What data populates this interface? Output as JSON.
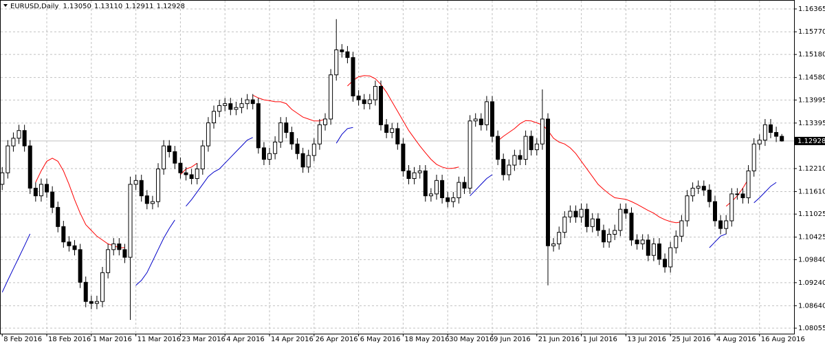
{
  "chart_data": {
    "type": "candlestick",
    "symbol": "EURUSD,Daily",
    "header_values": [
      "1.13050",
      "1.13110",
      "1.12911",
      "1.12928"
    ],
    "last_price": {
      "value": 1.12928,
      "label": "1.12928"
    },
    "ylim": [
      1.07912,
      1.16598
    ],
    "yticks": [
      1.16365,
      {
        "value": 1.1577,
        "label": "1.15770"
      },
      {
        "value": 1.1518,
        "label": "1.15180"
      },
      {
        "value": 1.1458,
        "label": "1.14580"
      },
      1.13995,
      1.13395,
      {
        "value": 1.1221,
        "label": "1.12210"
      },
      {
        "value": 1.1161,
        "label": "1.11610"
      },
      1.11025,
      1.10425,
      {
        "value": 1.0984,
        "label": "1.09840"
      },
      {
        "value": 1.0924,
        "label": "1.09240"
      },
      {
        "value": 1.0864,
        "label": "1.08640"
      },
      1.08055
    ],
    "xlim": [
      -0.4,
      142.2
    ],
    "xticks": [
      {
        "value": 0,
        "label": "8 Feb 2016"
      },
      {
        "value": 8,
        "label": "18 Feb 2016"
      },
      {
        "value": 16,
        "label": "1 Mar 2016"
      },
      {
        "value": 24,
        "label": "11 Mar 2016"
      },
      {
        "value": 32,
        "label": "23 Mar 2016"
      },
      {
        "value": 40,
        "label": "4 Apr 2016"
      },
      {
        "value": 48,
        "label": "14 Apr 2016"
      },
      {
        "value": 56,
        "label": "26 Apr 2016"
      },
      {
        "value": 64,
        "label": "6 May 2016"
      },
      {
        "value": 72,
        "label": "18 May 2016"
      },
      {
        "value": 80,
        "label": "30 May 2016"
      },
      {
        "value": 88,
        "label": "9 Jun 2016"
      },
      {
        "value": 96,
        "label": "21 Jun 2016"
      },
      {
        "value": 104,
        "label": "1 Jul 2016"
      },
      {
        "value": 112,
        "label": "13 Jul 2016"
      },
      {
        "value": 120,
        "label": "25 Jul 2016"
      },
      {
        "value": 128,
        "label": "4 Aug 2016"
      },
      {
        "value": 136,
        "label": "16 Aug 2016"
      }
    ],
    "grid": true,
    "up_color": "#ffffff",
    "down_color": "#000000",
    "candles": [
      [
        1.118,
        1.1225,
        1.1165,
        1.121
      ],
      [
        1.121,
        1.1295,
        1.1195,
        1.128
      ],
      [
        1.128,
        1.1315,
        1.1265,
        1.13
      ],
      [
        1.13,
        1.1335,
        1.1285,
        1.132
      ],
      [
        1.132,
        1.1335,
        1.1265,
        1.128
      ],
      [
        1.128,
        1.1295,
        1.1155,
        1.117
      ],
      [
        1.117,
        1.1185,
        1.1135,
        1.115
      ],
      [
        1.115,
        1.1195,
        1.1135,
        1.118
      ],
      [
        1.118,
        1.1195,
        1.1145,
        1.116
      ],
      [
        1.116,
        1.1175,
        1.1105,
        1.112
      ],
      [
        1.112,
        1.1135,
        1.1055,
        1.107
      ],
      [
        1.107,
        1.1085,
        1.1015,
        1.103
      ],
      [
        1.103,
        1.1045,
        1.1005,
        1.102
      ],
      [
        1.102,
        1.1035,
        1.0995,
        1.101
      ],
      [
        1.101,
        1.1025,
        1.091,
        1.0925
      ],
      [
        1.0925,
        1.094,
        1.086,
        1.0875
      ],
      [
        1.0875,
        1.089,
        1.0855,
        1.087
      ],
      [
        1.087,
        1.089,
        1.0855,
        1.0875
      ],
      [
        1.0875,
        1.0965,
        1.086,
        1.095
      ],
      [
        1.095,
        1.1025,
        1.0935,
        1.101
      ],
      [
        1.101,
        1.104,
        1.0995,
        1.1025
      ],
      [
        1.1025,
        1.104,
        1.0995,
        1.101
      ],
      [
        1.101,
        1.1025,
        1.0975,
        1.099
      ],
      [
        1.099,
        1.12,
        1.0827,
        1.118
      ],
      [
        1.118,
        1.1205,
        1.1165,
        1.119
      ],
      [
        1.119,
        1.1205,
        1.1135,
        1.115
      ],
      [
        1.115,
        1.1165,
        1.1115,
        1.113
      ],
      [
        1.113,
        1.115,
        1.1115,
        1.1135
      ],
      [
        1.1135,
        1.1235,
        1.112,
        1.122
      ],
      [
        1.122,
        1.1295,
        1.1205,
        1.128
      ],
      [
        1.128,
        1.1295,
        1.125,
        1.1265
      ],
      [
        1.1265,
        1.128,
        1.122,
        1.1235
      ],
      [
        1.1235,
        1.125,
        1.1195,
        1.121
      ],
      [
        1.121,
        1.1225,
        1.119,
        1.1205
      ],
      [
        1.1205,
        1.122,
        1.118,
        1.1195
      ],
      [
        1.1195,
        1.1235,
        1.118,
        1.122
      ],
      [
        1.122,
        1.1295,
        1.1205,
        1.128
      ],
      [
        1.128,
        1.1355,
        1.1265,
        1.134
      ],
      [
        1.134,
        1.1385,
        1.1325,
        1.137
      ],
      [
        1.137,
        1.14,
        1.1355,
        1.1385
      ],
      [
        1.1385,
        1.1405,
        1.137,
        1.139
      ],
      [
        1.139,
        1.1405,
        1.136,
        1.1375
      ],
      [
        1.1375,
        1.1395,
        1.136,
        1.138
      ],
      [
        1.138,
        1.1405,
        1.1365,
        1.139
      ],
      [
        1.139,
        1.1415,
        1.1375,
        1.14
      ],
      [
        1.14,
        1.1415,
        1.1375,
        1.139
      ],
      [
        1.139,
        1.1405,
        1.126,
        1.1275
      ],
      [
        1.1275,
        1.129,
        1.123,
        1.1245
      ],
      [
        1.1245,
        1.1275,
        1.123,
        1.126
      ],
      [
        1.126,
        1.1305,
        1.1245,
        1.129
      ],
      [
        1.129,
        1.1355,
        1.1275,
        1.134
      ],
      [
        1.134,
        1.1355,
        1.13,
        1.1315
      ],
      [
        1.1315,
        1.133,
        1.127,
        1.1285
      ],
      [
        1.1285,
        1.13,
        1.1245,
        1.126
      ],
      [
        1.126,
        1.1275,
        1.121,
        1.1225
      ],
      [
        1.1225,
        1.127,
        1.121,
        1.1255
      ],
      [
        1.1255,
        1.13,
        1.124,
        1.1285
      ],
      [
        1.1285,
        1.135,
        1.127,
        1.1335
      ],
      [
        1.1335,
        1.1365,
        1.132,
        1.135
      ],
      [
        1.135,
        1.148,
        1.1335,
        1.1465
      ],
      [
        1.1465,
        1.161,
        1.145,
        1.153
      ],
      [
        1.153,
        1.1545,
        1.151,
        1.1525
      ],
      [
        1.1525,
        1.154,
        1.1495,
        1.151
      ],
      [
        1.151,
        1.1525,
        1.1395,
        1.141
      ],
      [
        1.141,
        1.1425,
        1.1385,
        1.14
      ],
      [
        1.14,
        1.1415,
        1.1375,
        1.139
      ],
      [
        1.139,
        1.1415,
        1.1375,
        1.14
      ],
      [
        1.14,
        1.145,
        1.1385,
        1.1435
      ],
      [
        1.1435,
        1.145,
        1.132,
        1.1335
      ],
      [
        1.1335,
        1.135,
        1.13,
        1.1315
      ],
      [
        1.1315,
        1.134,
        1.13,
        1.1325
      ],
      [
        1.1325,
        1.134,
        1.127,
        1.1285
      ],
      [
        1.1285,
        1.13,
        1.12,
        1.1215
      ],
      [
        1.1215,
        1.123,
        1.118,
        1.1195
      ],
      [
        1.1195,
        1.1225,
        1.118,
        1.121
      ],
      [
        1.121,
        1.123,
        1.1195,
        1.1215
      ],
      [
        1.1215,
        1.123,
        1.1135,
        1.115
      ],
      [
        1.115,
        1.117,
        1.1135,
        1.1155
      ],
      [
        1.1155,
        1.1205,
        1.114,
        1.119
      ],
      [
        1.119,
        1.1205,
        1.113,
        1.1145
      ],
      [
        1.1145,
        1.116,
        1.112,
        1.1135
      ],
      [
        1.1135,
        1.116,
        1.112,
        1.1145
      ],
      [
        1.1145,
        1.12,
        1.113,
        1.1185
      ],
      [
        1.1185,
        1.12,
        1.1155,
        1.117
      ],
      [
        1.117,
        1.136,
        1.1155,
        1.1345
      ],
      [
        1.1345,
        1.1365,
        1.133,
        1.135
      ],
      [
        1.135,
        1.1365,
        1.132,
        1.1335
      ],
      [
        1.1335,
        1.141,
        1.132,
        1.1395
      ],
      [
        1.1395,
        1.141,
        1.129,
        1.1305
      ],
      [
        1.1305,
        1.132,
        1.123,
        1.1245
      ],
      [
        1.1245,
        1.126,
        1.119,
        1.1205
      ],
      [
        1.1205,
        1.1245,
        1.119,
        1.123
      ],
      [
        1.123,
        1.127,
        1.1215,
        1.1255
      ],
      [
        1.1255,
        1.127,
        1.123,
        1.1245
      ],
      [
        1.1245,
        1.132,
        1.123,
        1.1305
      ],
      [
        1.1305,
        1.132,
        1.1255,
        1.127
      ],
      [
        1.127,
        1.13,
        1.1255,
        1.1285
      ],
      [
        1.1285,
        1.1427,
        1.127,
        1.135
      ],
      [
        1.135,
        1.1365,
        1.0917,
        1.102
      ],
      [
        1.102,
        1.104,
        1.1005,
        1.1025
      ],
      [
        1.1025,
        1.107,
        1.101,
        1.1055
      ],
      [
        1.1055,
        1.111,
        1.104,
        1.1095
      ],
      [
        1.1095,
        1.1125,
        1.108,
        1.111
      ],
      [
        1.111,
        1.1125,
        1.108,
        1.1095
      ],
      [
        1.1095,
        1.113,
        1.108,
        1.1115
      ],
      [
        1.1115,
        1.113,
        1.1055,
        1.107
      ],
      [
        1.107,
        1.1105,
        1.1055,
        1.109
      ],
      [
        1.109,
        1.1105,
        1.1045,
        1.106
      ],
      [
        1.106,
        1.1075,
        1.1015,
        1.103
      ],
      [
        1.103,
        1.1065,
        1.1015,
        1.105
      ],
      [
        1.105,
        1.1075,
        1.1035,
        1.106
      ],
      [
        1.106,
        1.113,
        1.1045,
        1.1115
      ],
      [
        1.1115,
        1.113,
        1.109,
        1.1105
      ],
      [
        1.1105,
        1.112,
        1.102,
        1.1035
      ],
      [
        1.1035,
        1.105,
        1.101,
        1.1025
      ],
      [
        1.1025,
        1.105,
        1.101,
        1.1035
      ],
      [
        1.1035,
        1.105,
        1.098,
        1.0995
      ],
      [
        1.0995,
        1.104,
        1.098,
        1.1025
      ],
      [
        1.1025,
        1.104,
        1.097,
        1.0985
      ],
      [
        1.0985,
        1.1,
        1.095,
        1.0965
      ],
      [
        1.0965,
        1.103,
        1.095,
        1.1015
      ],
      [
        1.1015,
        1.106,
        1.1,
        1.1045
      ],
      [
        1.1045,
        1.11,
        1.103,
        1.1085
      ],
      [
        1.1085,
        1.1165,
        1.107,
        1.115
      ],
      [
        1.115,
        1.1185,
        1.1135,
        1.117
      ],
      [
        1.117,
        1.119,
        1.1155,
        1.1175
      ],
      [
        1.1175,
        1.119,
        1.115,
        1.1165
      ],
      [
        1.1165,
        1.118,
        1.112,
        1.1135
      ],
      [
        1.1135,
        1.115,
        1.107,
        1.1085
      ],
      [
        1.1085,
        1.11,
        1.105,
        1.1065
      ],
      [
        1.1065,
        1.11,
        1.105,
        1.1085
      ],
      [
        1.1085,
        1.117,
        1.107,
        1.1155
      ],
      [
        1.1155,
        1.117,
        1.114,
        1.1155
      ],
      [
        1.1155,
        1.117,
        1.113,
        1.1145
      ],
      [
        1.1145,
        1.123,
        1.113,
        1.1215
      ],
      [
        1.1215,
        1.13,
        1.12,
        1.1285
      ],
      [
        1.1285,
        1.131,
        1.127,
        1.1295
      ],
      [
        1.1295,
        1.135,
        1.128,
        1.1335
      ],
      [
        1.1335,
        1.135,
        1.13,
        1.1315
      ],
      [
        1.1315,
        1.133,
        1.129,
        1.1305
      ],
      [
        1.1305,
        1.1311,
        1.12911,
        1.12928
      ]
    ],
    "series": [
      {
        "color": "#ff0000",
        "values": [
          null,
          null,
          null,
          null,
          null,
          null,
          1.1185,
          1.1215,
          1.124,
          1.1248,
          1.124,
          1.1215,
          1.118,
          1.114,
          1.1105,
          1.1075,
          1.106,
          1.1045,
          1.1035,
          1.1025,
          1.102,
          1.1015,
          1.1015,
          null,
          null,
          null,
          null,
          null,
          null,
          null,
          null,
          null,
          1.1205,
          1.122,
          1.1225,
          1.1235,
          null,
          null,
          null,
          null,
          null,
          null,
          null,
          null,
          null,
          1.1412,
          1.1405,
          1.14,
          1.1398,
          1.1395,
          1.1395,
          1.139,
          1.1375,
          1.1365,
          1.1355,
          1.135,
          1.1345,
          1.1345,
          1.135,
          null,
          null,
          null,
          1.1436,
          1.145,
          1.146,
          1.1463,
          1.1462,
          1.1455,
          1.144,
          1.142,
          1.1395,
          1.137,
          1.1345,
          1.132,
          1.13,
          1.128,
          1.1262,
          1.1245,
          1.1232,
          1.1225,
          1.1221,
          1.1222,
          1.1225,
          null,
          null,
          null,
          null,
          null,
          null,
          1.1293,
          1.1305,
          1.1315,
          1.1325,
          1.1338,
          1.1346,
          1.1345,
          1.134,
          1.1335,
          1.132,
          1.13,
          1.129,
          1.1285,
          1.1275,
          1.126,
          1.124,
          1.122,
          1.12,
          1.118,
          1.1167,
          1.1155,
          1.1145,
          1.1143,
          1.1141,
          1.1135,
          1.1128,
          1.112,
          1.1112,
          1.1105,
          1.1095,
          1.1088,
          1.1083,
          1.108,
          1.1082,
          null,
          null,
          null,
          null,
          null,
          null,
          null,
          1.1123,
          1.1135,
          1.115,
          1.117,
          1.1194,
          null,
          null,
          null,
          null,
          null,
          null
        ]
      },
      {
        "color": "#0000c8",
        "values": [
          1.0899,
          1.093,
          1.096,
          1.099,
          1.102,
          1.1051,
          null,
          null,
          null,
          null,
          null,
          null,
          null,
          null,
          null,
          null,
          null,
          null,
          null,
          null,
          null,
          null,
          null,
          null,
          1.0917,
          1.093,
          1.095,
          1.098,
          1.101,
          1.104,
          1.1065,
          1.1087,
          null,
          1.1123,
          1.114,
          1.116,
          1.118,
          1.12,
          1.1212,
          1.122,
          1.1235,
          1.125,
          1.1265,
          1.128,
          1.1295,
          1.1302,
          null,
          null,
          null,
          null,
          null,
          null,
          null,
          null,
          null,
          null,
          null,
          null,
          null,
          null,
          1.1287,
          1.131,
          1.1325,
          1.1328,
          null,
          null,
          null,
          null,
          null,
          null,
          null,
          null,
          null,
          null,
          null,
          null,
          null,
          null,
          null,
          null,
          null,
          null,
          null,
          null,
          1.115,
          1.1165,
          1.118,
          1.1195,
          1.1205,
          null,
          null,
          null,
          null,
          null,
          null,
          null,
          null,
          null,
          null,
          null,
          null,
          null,
          null,
          null,
          null,
          null,
          null,
          null,
          null,
          null,
          null,
          null,
          null,
          null,
          null,
          null,
          null,
          null,
          null,
          null,
          null,
          null,
          null,
          null,
          null,
          null,
          null,
          1.1015,
          1.103,
          1.1045,
          1.1051,
          null,
          null,
          null,
          null,
          1.1132,
          1.1145,
          1.116,
          1.1175,
          1.1185,
          null
        ]
      }
    ]
  }
}
